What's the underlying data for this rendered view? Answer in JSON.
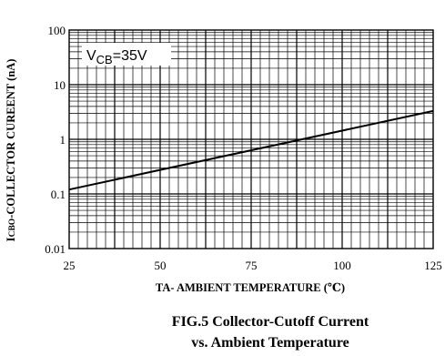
{
  "chart_data": {
    "type": "line",
    "xlabel": "TA- AMBIENT  TEMPERATURE (℃)",
    "ylabel": "ICBO-COLLECTOR CUREENT (nA)",
    "ylabel_prefix": "I",
    "ylabel_sub": "CBO",
    "ylabel_rest": "-COLLECTOR CUREENT (nA)",
    "xlim": [
      25,
      125
    ],
    "ylim": [
      0.01,
      100
    ],
    "yscale": "log",
    "grid": true,
    "x_ticks": [
      "25",
      "50",
      "75",
      "100",
      "125"
    ],
    "x_tick_values": [
      25,
      50,
      75,
      100,
      125
    ],
    "y_ticks": [
      "0.01",
      "0.1",
      "1",
      "10",
      "100"
    ],
    "y_tick_values": [
      0.01,
      0.1,
      1,
      10,
      100
    ],
    "x_minor_step": 2.5,
    "annotation": {
      "prefix": "V",
      "sub": "CB",
      "rest": "=35V"
    },
    "series": [
      {
        "x": [
          25,
          125
        ],
        "y": [
          0.12,
          3.3
        ]
      }
    ]
  },
  "caption": {
    "line1": "FIG.5 Collector-Cutoff Current",
    "line2": "vs. Ambient Temperature"
  },
  "colors": {
    "line": "#000000",
    "grid": "#000000",
    "background": "#ffffff"
  }
}
